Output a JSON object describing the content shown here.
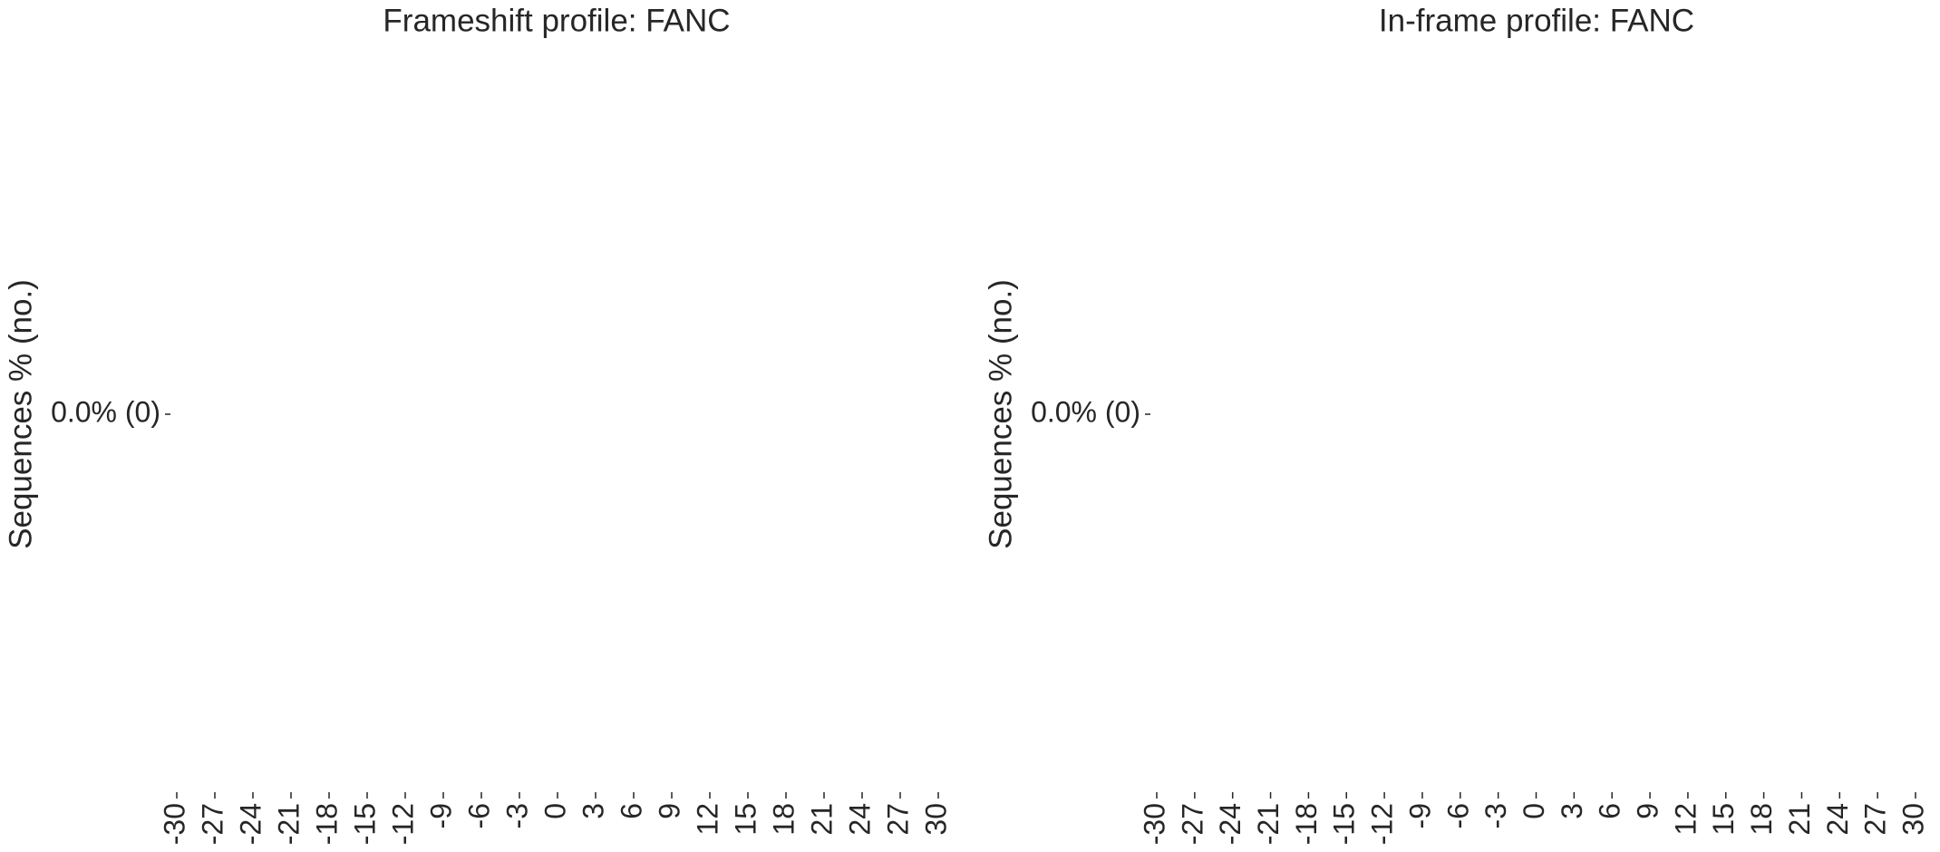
{
  "chart_data": [
    {
      "type": "bar",
      "title": "Frameshift profile: FANC",
      "ylabel": "Sequences % (no.)",
      "xlim": [
        -30,
        30
      ],
      "xticks": [
        -30,
        -27,
        -24,
        -21,
        -18,
        -15,
        -12,
        -9,
        -6,
        -3,
        0,
        3,
        6,
        9,
        12,
        15,
        18,
        21,
        24,
        27,
        30
      ],
      "ylim": [
        -1,
        1
      ],
      "yticks": [
        {
          "value": 0,
          "label": "0.0% (0)"
        }
      ]
    },
    {
      "type": "bar",
      "title": "In-frame profile: FANC",
      "ylabel": "Sequences % (no.)",
      "xlim": [
        -30,
        30
      ],
      "xticks": [
        -30,
        -27,
        -24,
        -21,
        -18,
        -15,
        -12,
        -9,
        -6,
        -3,
        0,
        3,
        6,
        9,
        12,
        15,
        18,
        21,
        24,
        27,
        30
      ],
      "ylim": [
        -1,
        1
      ],
      "yticks": [
        {
          "value": 0,
          "label": "0.0% (0)"
        }
      ]
    }
  ]
}
